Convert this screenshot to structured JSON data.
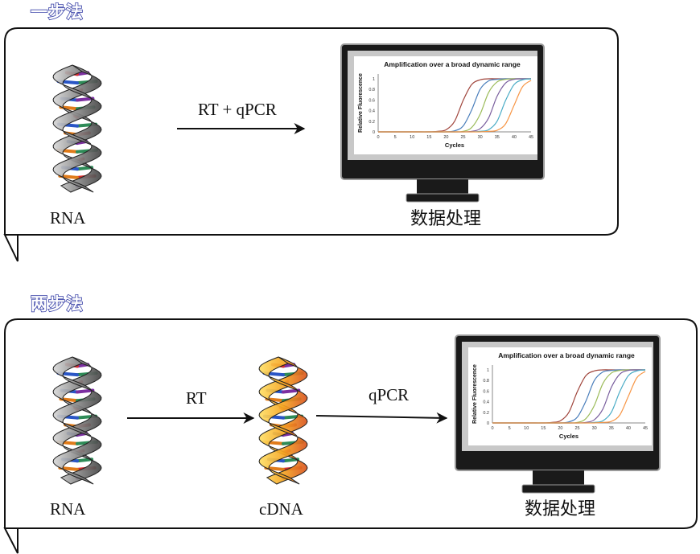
{
  "sections": [
    {
      "title": "一步法",
      "steps": [
        "RNA"
      ],
      "arrow_labels": [
        "RT + qPCR"
      ],
      "result_label": "数据处理"
    },
    {
      "title": "两步法",
      "steps": [
        "RNA",
        "cDNA"
      ],
      "arrow_labels": [
        "RT",
        "qPCR"
      ],
      "result_label": "数据处理"
    }
  ],
  "colors": {
    "title_outline": "#3a43a8",
    "rna_ribbon": "#8a8a8a",
    "cdna_ribbon": "#f5a623",
    "monitor": "#1a1a1a"
  },
  "chart_data": [
    {
      "type": "line",
      "title": "Amplification over a broad dynamic range",
      "xlabel": "Cycles",
      "ylabel": "Relative Fluorescence",
      "xlim": [
        0,
        45
      ],
      "ylim": [
        0,
        1
      ],
      "xticks": [
        0,
        5,
        10,
        15,
        20,
        25,
        30,
        35,
        40,
        45
      ],
      "yticks": [
        0,
        0.2,
        0.4,
        0.6,
        0.8,
        1
      ],
      "grid": false,
      "x": [
        0,
        10,
        15,
        17.5,
        20,
        22.5,
        25,
        27.5,
        30,
        32.5,
        35,
        37.5,
        40,
        42.5,
        45
      ],
      "series": [
        {
          "color": "#a0453c",
          "values": [
            0,
            0,
            0,
            0.01,
            0.04,
            0.2,
            0.59,
            0.89,
            0.98,
            1,
            1,
            1,
            1,
            1,
            1
          ]
        },
        {
          "color": "#4a7ebb",
          "values": [
            0,
            0,
            0,
            0,
            0,
            0.02,
            0.11,
            0.41,
            0.8,
            0.96,
            0.99,
            1,
            1,
            1,
            1
          ]
        },
        {
          "color": "#9bbb59",
          "values": [
            0,
            0,
            0,
            0,
            0,
            0,
            0.01,
            0.08,
            0.33,
            0.74,
            0.94,
            0.99,
            1,
            1,
            1
          ]
        },
        {
          "color": "#7a5f9e",
          "values": [
            0,
            0,
            0,
            0,
            0,
            0,
            0,
            0.01,
            0.06,
            0.26,
            0.67,
            0.92,
            0.99,
            1,
            1
          ]
        },
        {
          "color": "#4bacc6",
          "values": [
            0,
            0,
            0,
            0,
            0,
            0,
            0,
            0,
            0.01,
            0.04,
            0.2,
            0.59,
            0.89,
            0.98,
            1
          ]
        },
        {
          "color": "#f79646",
          "values": [
            0,
            0,
            0,
            0,
            0,
            0,
            0,
            0,
            0,
            0.01,
            0.03,
            0.15,
            0.5,
            0.85,
            0.97
          ]
        }
      ]
    },
    {
      "type": "line",
      "title": "Amplification over a broad dynamic range",
      "xlabel": "Cycles",
      "ylabel": "Relative Fluorescence",
      "xlim": [
        0,
        45
      ],
      "ylim": [
        0,
        1
      ],
      "xticks": [
        0,
        5,
        10,
        15,
        20,
        25,
        30,
        35,
        40,
        45
      ],
      "yticks": [
        0,
        0.2,
        0.4,
        0.6,
        0.8,
        1
      ],
      "grid": false,
      "x": [
        0,
        10,
        15,
        17.5,
        20,
        22.5,
        25,
        27.5,
        30,
        32.5,
        35,
        37.5,
        40,
        42.5,
        45
      ],
      "series": [
        {
          "color": "#a0453c",
          "values": [
            0,
            0,
            0,
            0.01,
            0.04,
            0.2,
            0.59,
            0.89,
            0.98,
            1,
            1,
            1,
            1,
            1,
            1
          ]
        },
        {
          "color": "#4a7ebb",
          "values": [
            0,
            0,
            0,
            0,
            0,
            0.02,
            0.11,
            0.41,
            0.8,
            0.96,
            0.99,
            1,
            1,
            1,
            1
          ]
        },
        {
          "color": "#9bbb59",
          "values": [
            0,
            0,
            0,
            0,
            0,
            0,
            0.01,
            0.08,
            0.33,
            0.74,
            0.94,
            0.99,
            1,
            1,
            1
          ]
        },
        {
          "color": "#7a5f9e",
          "values": [
            0,
            0,
            0,
            0,
            0,
            0,
            0,
            0.01,
            0.06,
            0.26,
            0.67,
            0.92,
            0.99,
            1,
            1
          ]
        },
        {
          "color": "#4bacc6",
          "values": [
            0,
            0,
            0,
            0,
            0,
            0,
            0,
            0,
            0.01,
            0.04,
            0.2,
            0.59,
            0.89,
            0.98,
            1
          ]
        },
        {
          "color": "#f79646",
          "values": [
            0,
            0,
            0,
            0,
            0,
            0,
            0,
            0,
            0,
            0.01,
            0.03,
            0.15,
            0.5,
            0.85,
            0.97
          ]
        }
      ]
    }
  ]
}
